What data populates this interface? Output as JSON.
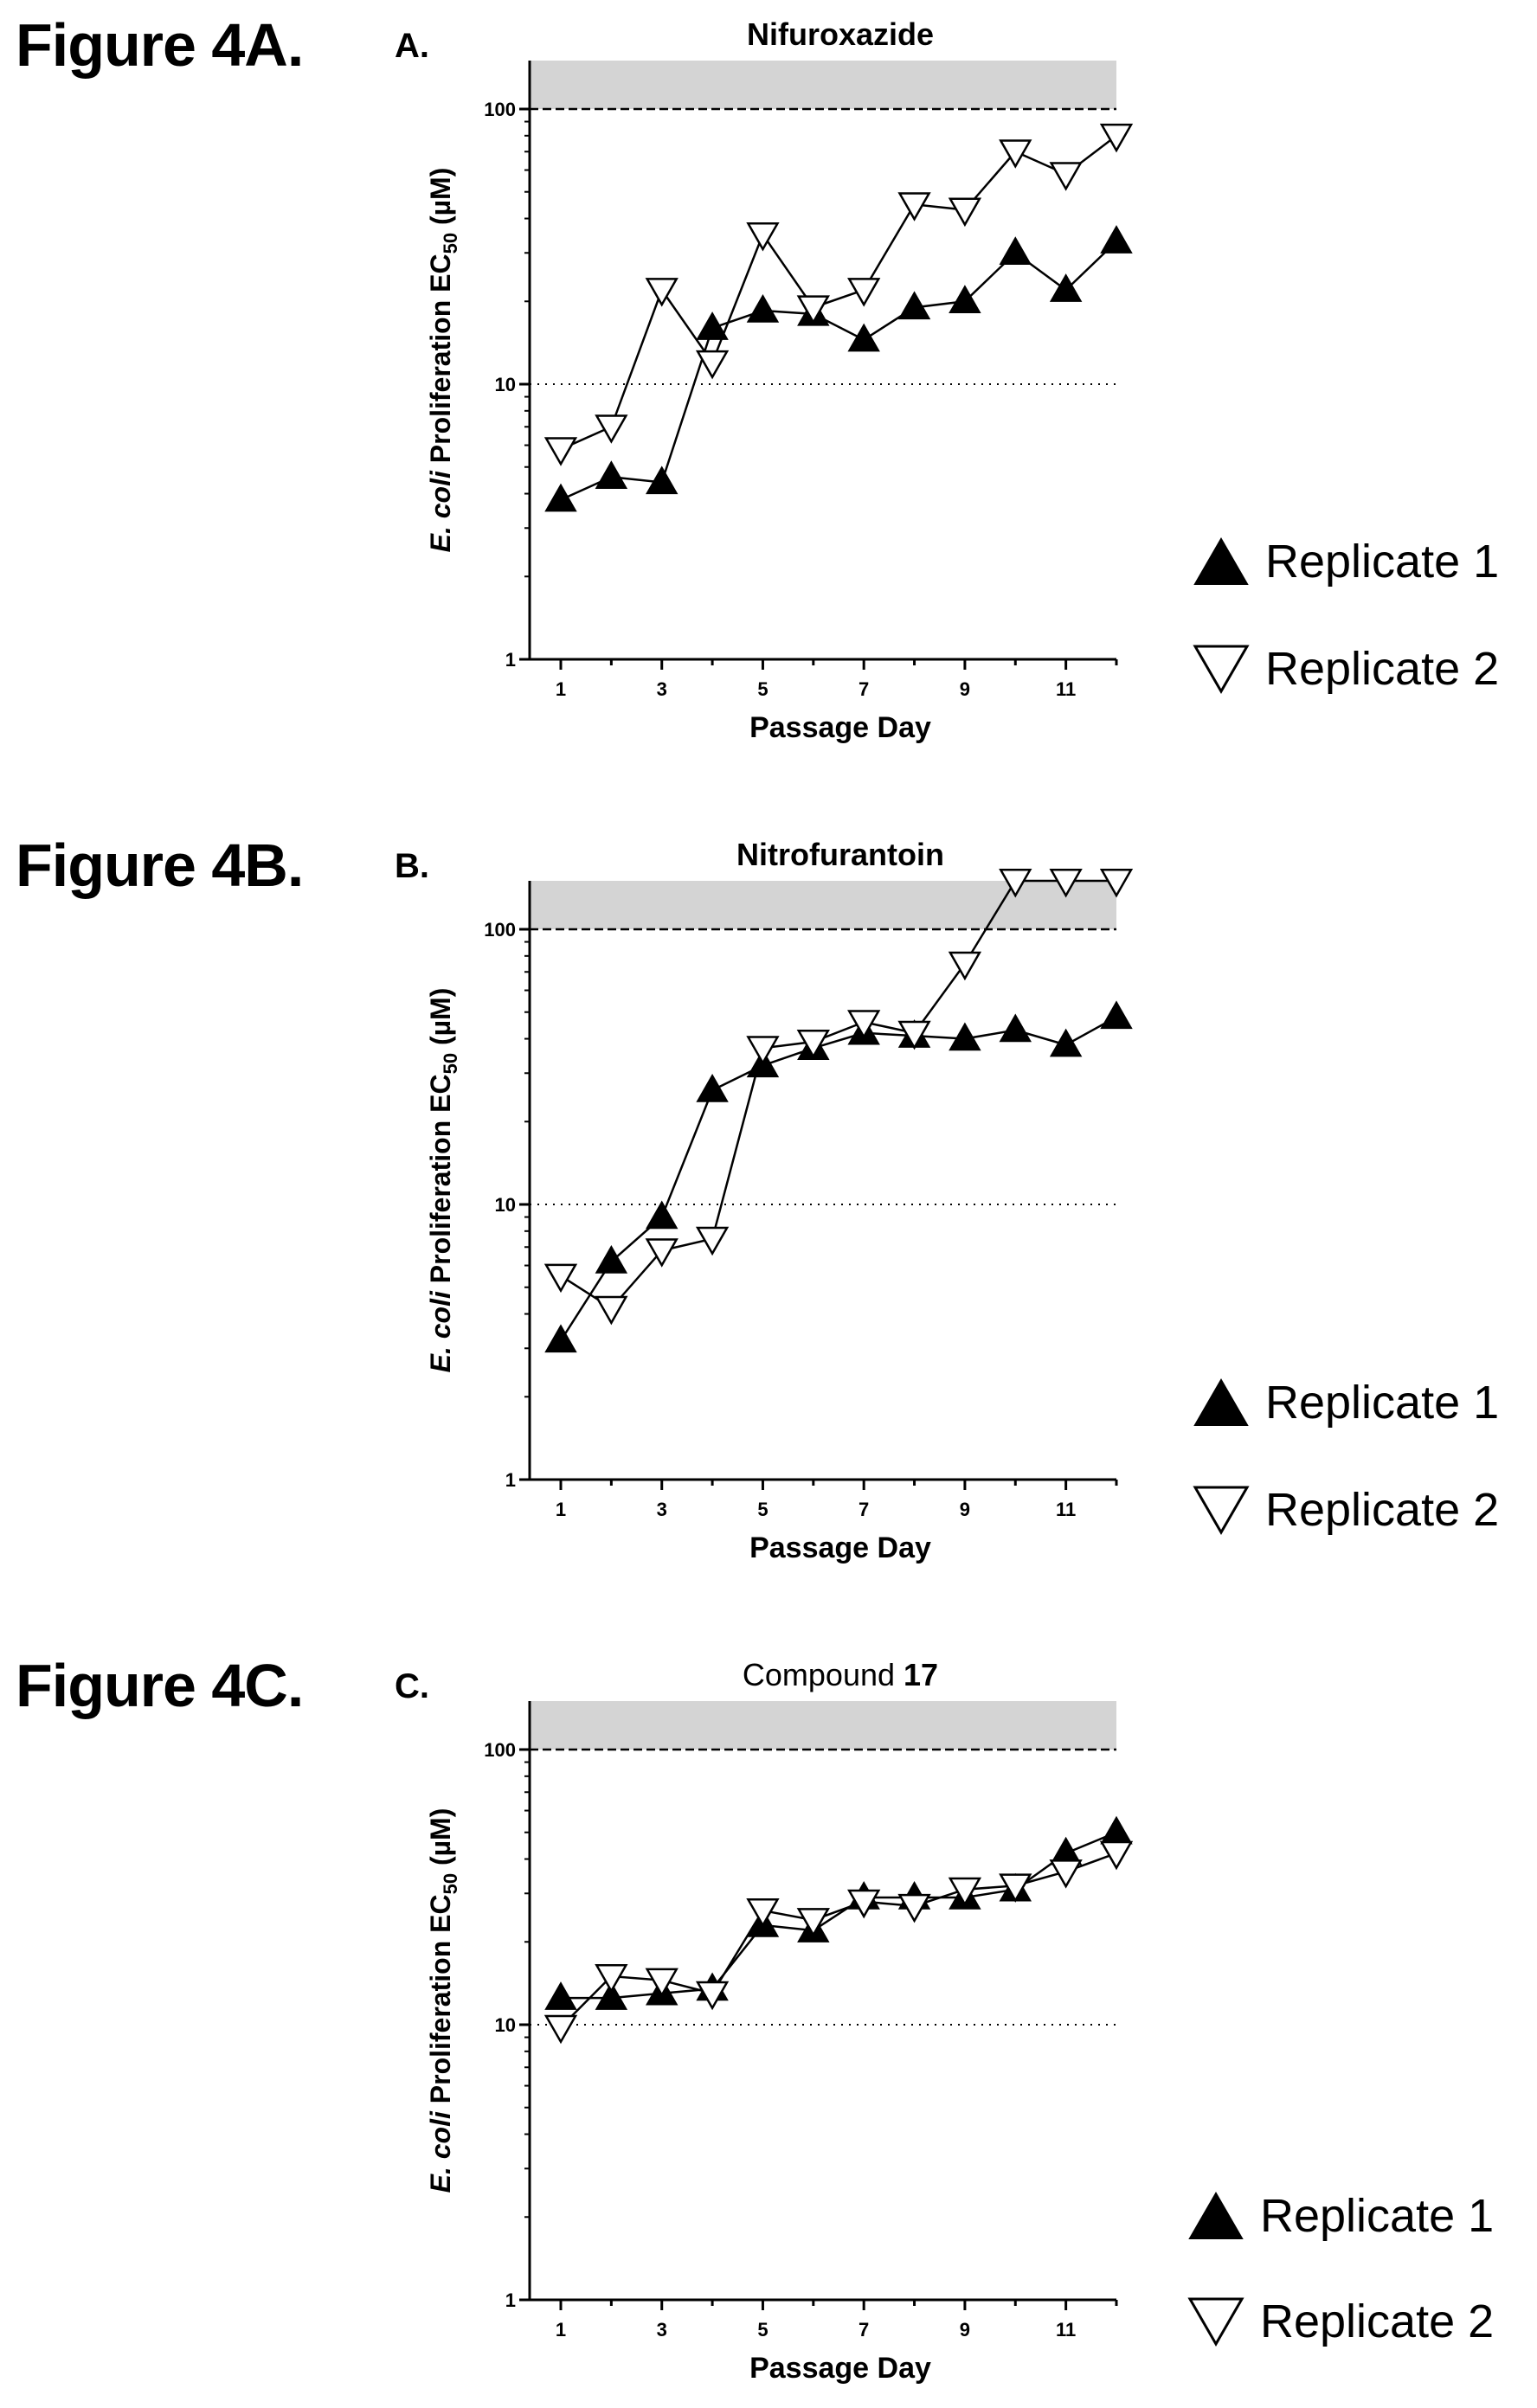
{
  "chart_data": [
    {
      "type": "line",
      "figure_label": "Figure 4A.",
      "panel_letter": "A.",
      "title": "Nifuroxazide",
      "title_bold": true,
      "title_suffix": "",
      "xlabel": "Passage Day",
      "ylabel_prefix": "E. coli",
      "ylabel_main": " Proliferation EC",
      "ylabel_sub": "50",
      "ylabel_unit": " (µM)",
      "y_scale": "log",
      "ylim": [
        1,
        150
      ],
      "xlim": [
        0.5,
        12.3
      ],
      "y_ticks": [
        1,
        10,
        100
      ],
      "x_ticks": [
        1,
        3,
        5,
        7,
        9,
        11
      ],
      "upper_limit_line": 100,
      "shaded_region": [
        100,
        150
      ],
      "series": [
        {
          "name": "Replicate 1",
          "marker": "triangle-up-filled",
          "x": [
            1,
            2,
            3,
            4,
            5,
            6,
            7,
            8,
            9,
            10,
            11,
            12
          ],
          "y": [
            3.8,
            4.6,
            4.4,
            16,
            18.5,
            18,
            14.5,
            19,
            20,
            30,
            22,
            33
          ]
        },
        {
          "name": "Replicate 2",
          "marker": "triangle-down-open",
          "x": [
            1,
            2,
            3,
            4,
            5,
            6,
            7,
            8,
            9,
            10,
            11,
            12
          ],
          "y": [
            5.8,
            7,
            22,
            12,
            35,
            19,
            22,
            45,
            43,
            70,
            58,
            80
          ]
        }
      ]
    },
    {
      "type": "line",
      "figure_label": "Figure 4B.",
      "panel_letter": "B.",
      "title": "Nitrofurantoin",
      "title_bold": true,
      "title_suffix": "",
      "xlabel": "Passage Day",
      "ylabel_prefix": "E. coli",
      "ylabel_main": " Proliferation EC",
      "ylabel_sub": "50",
      "ylabel_unit": " (µM)",
      "y_scale": "log",
      "ylim": [
        1,
        150
      ],
      "xlim": [
        0.5,
        12.3
      ],
      "y_ticks": [
        1,
        10,
        100
      ],
      "x_ticks": [
        1,
        3,
        5,
        7,
        9,
        11
      ],
      "upper_limit_line": 100,
      "shaded_region": [
        100,
        150
      ],
      "series": [
        {
          "name": "Replicate 1",
          "marker": "triangle-up-filled",
          "x": [
            1,
            2,
            3,
            4,
            5,
            6,
            7,
            8,
            9,
            10,
            11,
            12
          ],
          "y": [
            3.2,
            6.2,
            9,
            26,
            32,
            37,
            42,
            41,
            40,
            43,
            38,
            48
          ]
        },
        {
          "name": "Replicate 2",
          "marker": "triangle-down-open",
          "x": [
            1,
            2,
            3,
            4,
            5,
            6,
            7,
            8,
            9,
            10,
            11,
            12
          ],
          "y": [
            5.5,
            4.2,
            6.8,
            7.5,
            37,
            39,
            46,
            42,
            75,
            150,
            150,
            150
          ]
        }
      ]
    },
    {
      "type": "line",
      "figure_label": "Figure 4C.",
      "panel_letter": "C.",
      "title": "Compound ",
      "title_bold": false,
      "title_suffix": "17",
      "xlabel": "Passage Day",
      "ylabel_prefix": "E. coli",
      "ylabel_main": " Proliferation EC",
      "ylabel_sub": "50",
      "ylabel_unit": " (µM)",
      "y_scale": "log",
      "ylim": [
        1,
        150
      ],
      "xlim": [
        0.5,
        12.3
      ],
      "y_ticks": [
        1,
        10,
        100
      ],
      "x_ticks": [
        1,
        3,
        5,
        7,
        9,
        11
      ],
      "upper_limit_line": 100,
      "shaded_region": [
        100,
        150
      ],
      "series": [
        {
          "name": "Replicate 1",
          "marker": "triangle-up-filled",
          "x": [
            1,
            2,
            3,
            4,
            5,
            6,
            7,
            8,
            9,
            10,
            11,
            12
          ],
          "y": [
            12.5,
            12.5,
            13,
            13.5,
            23,
            22,
            29,
            29,
            29,
            31,
            42,
            50
          ]
        },
        {
          "name": "Replicate 2",
          "marker": "triangle-down-open",
          "x": [
            1,
            2,
            3,
            4,
            5,
            6,
            7,
            8,
            9,
            10,
            11,
            12
          ],
          "y": [
            9.8,
            15,
            14.5,
            13,
            26,
            24,
            28,
            27,
            31,
            32,
            36,
            42
          ]
        }
      ]
    }
  ],
  "colors": {
    "filled": "#000000",
    "open_fill": "#ffffff",
    "shade": "#d4d4d4"
  }
}
